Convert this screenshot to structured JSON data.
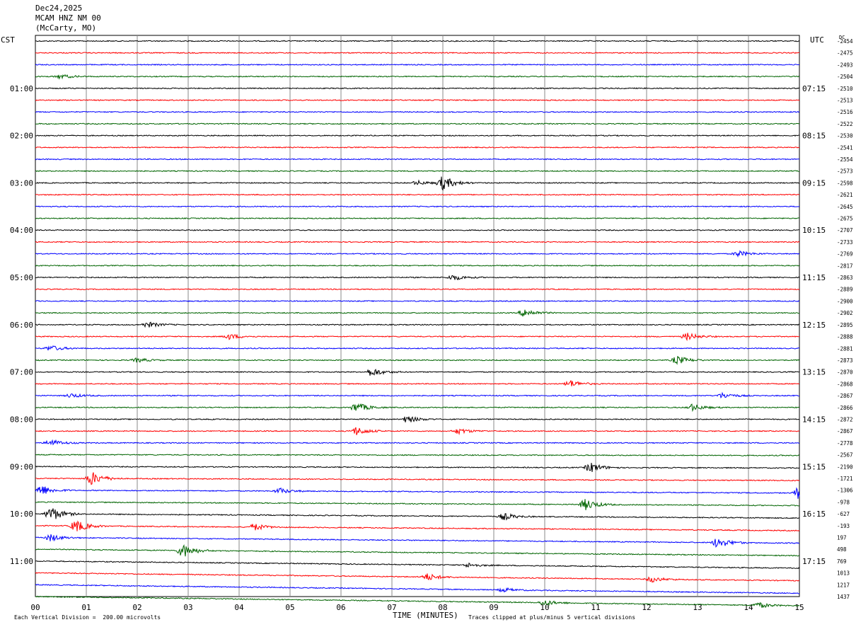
{
  "header": {
    "date": "Dec24,2025",
    "station": "MCAM HNZ NM 00",
    "location": "(McCarty, MO)"
  },
  "left_tz": "CST",
  "right_tz": "UTC",
  "dc_label": "DC",
  "footer": {
    "xlabel": "TIME (MINUTES)",
    "scale_note": "Each Vertical Division =  200.00 microvolts",
    "clip_note": "Traces clipped at plus/minus 5 vertical divisions"
  },
  "chart_data": {
    "type": "line",
    "title": "Dec24,2025",
    "xlabel": "TIME (MINUTES)",
    "xlim": [
      0,
      15
    ],
    "x_ticks": [
      "00",
      "01",
      "02",
      "03",
      "04",
      "05",
      "06",
      "07",
      "08",
      "09",
      "10",
      "11",
      "12",
      "13",
      "14",
      "15"
    ],
    "trace_colors": [
      "#000000",
      "#ff0000",
      "#0000ff",
      "#006400"
    ],
    "left_time_labels": [
      "01:00",
      "02:00",
      "03:00",
      "04:00",
      "05:00",
      "06:00",
      "07:00",
      "08:00",
      "09:00",
      "10:00",
      "11:00"
    ],
    "right_time_labels": [
      "07:15",
      "08:15",
      "09:15",
      "10:15",
      "11:15",
      "12:15",
      "13:15",
      "14:15",
      "15:15",
      "16:15",
      "17:15"
    ],
    "dc_offsets": [
      "-2454",
      "-2475",
      "-2493",
      "-2504",
      "-2510",
      "-2513",
      "-2516",
      "-2522",
      "-2530",
      "-2541",
      "-2554",
      "-2573",
      "-2598",
      "-2621",
      "-2645",
      "-2675",
      "-2707",
      "-2733",
      "-2769",
      "-2817",
      "-2863",
      "-2889",
      "-2900",
      "-2902",
      "-2895",
      "-2888",
      "-2881",
      "-2873",
      "-2870",
      "-2868",
      "-2867",
      "-2866",
      "-2872",
      "-2867",
      "-2778",
      "-2567",
      "-2190",
      "-1721",
      "-1306",
      "-978",
      "-627",
      "-193",
      "197",
      "498",
      "769",
      "1013",
      "1217",
      "1437"
    ],
    "events": [
      {
        "trace": 3,
        "minute": 0.5,
        "amp": 3
      },
      {
        "trace": 12,
        "minute": 8.0,
        "amp": 10
      },
      {
        "trace": 12,
        "minute": 7.5,
        "amp": 3
      },
      {
        "trace": 18,
        "minute": 13.8,
        "amp": 4
      },
      {
        "trace": 20,
        "minute": 8.2,
        "amp": 4
      },
      {
        "trace": 23,
        "minute": 9.6,
        "amp": 6
      },
      {
        "trace": 24,
        "minute": 2.2,
        "amp": 4
      },
      {
        "trace": 25,
        "minute": 3.8,
        "amp": 4
      },
      {
        "trace": 25,
        "minute": 12.8,
        "amp": 5
      },
      {
        "trace": 26,
        "minute": 0.3,
        "amp": 4
      },
      {
        "trace": 27,
        "minute": 2.0,
        "amp": 3
      },
      {
        "trace": 27,
        "minute": 12.6,
        "amp": 6
      },
      {
        "trace": 28,
        "minute": 6.6,
        "amp": 6
      },
      {
        "trace": 29,
        "minute": 10.5,
        "amp": 5
      },
      {
        "trace": 30,
        "minute": 0.7,
        "amp": 3
      },
      {
        "trace": 30,
        "minute": 13.5,
        "amp": 4
      },
      {
        "trace": 31,
        "minute": 6.3,
        "amp": 7
      },
      {
        "trace": 31,
        "minute": 12.9,
        "amp": 5
      },
      {
        "trace": 32,
        "minute": 7.3,
        "amp": 5
      },
      {
        "trace": 33,
        "minute": 6.3,
        "amp": 6
      },
      {
        "trace": 33,
        "minute": 8.3,
        "amp": 4
      },
      {
        "trace": 34,
        "minute": 0.3,
        "amp": 5
      },
      {
        "trace": 36,
        "minute": 10.9,
        "amp": 7
      },
      {
        "trace": 37,
        "minute": 1.1,
        "amp": 10
      },
      {
        "trace": 38,
        "minute": 0.1,
        "amp": 8
      },
      {
        "trace": 38,
        "minute": 15.0,
        "amp": 10
      },
      {
        "trace": 38,
        "minute": 4.8,
        "amp": 4
      },
      {
        "trace": 39,
        "minute": 10.8,
        "amp": 8
      },
      {
        "trace": 40,
        "minute": 0.3,
        "amp": 11
      },
      {
        "trace": 40,
        "minute": 9.2,
        "amp": 5
      },
      {
        "trace": 41,
        "minute": 0.8,
        "amp": 9
      },
      {
        "trace": 41,
        "minute": 4.3,
        "amp": 5
      },
      {
        "trace": 42,
        "minute": 0.3,
        "amp": 5
      },
      {
        "trace": 42,
        "minute": 13.4,
        "amp": 8
      },
      {
        "trace": 43,
        "minute": 2.9,
        "amp": 10
      },
      {
        "trace": 44,
        "minute": 8.5,
        "amp": 3
      },
      {
        "trace": 45,
        "minute": 7.7,
        "amp": 5
      },
      {
        "trace": 45,
        "minute": 12.1,
        "amp": 4
      },
      {
        "trace": 46,
        "minute": 9.2,
        "amp": 3
      },
      {
        "trace": 47,
        "minute": 10.0,
        "amp": 4
      },
      {
        "trace": 47,
        "minute": 14.2,
        "amp": 4
      }
    ]
  }
}
